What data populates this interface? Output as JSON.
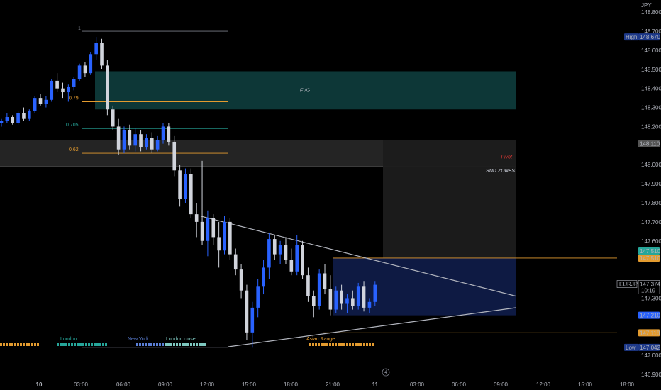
{
  "chart_data": {
    "type": "candlestick",
    "symbol": "EURJPY",
    "currency": "JPY",
    "y_axis": {
      "min": 146.9,
      "max": 148.8,
      "ticks": [
        "148.800",
        "148.700",
        "148.600",
        "148.500",
        "148.400",
        "148.300",
        "148.200",
        "148.000",
        "147.900",
        "147.800",
        "147.700",
        "147.600",
        "147.300",
        "147.000",
        "146.900"
      ]
    },
    "x_axis": {
      "ticks": [
        {
          "label": "10",
          "bold": true
        },
        {
          "label": "03:00"
        },
        {
          "label": "06:00"
        },
        {
          "label": "09:00"
        },
        {
          "label": "12:00"
        },
        {
          "label": "15:00"
        },
        {
          "label": "18:00"
        },
        {
          "label": "21:00"
        },
        {
          "label": "11",
          "bold": true
        },
        {
          "label": "03:00"
        },
        {
          "label": "06:00"
        },
        {
          "label": "09:00"
        },
        {
          "label": "12:00"
        },
        {
          "label": "15:00"
        },
        {
          "label": "18:00"
        }
      ]
    },
    "price_labels": [
      {
        "text": "High",
        "value": "148.670",
        "price": 148.67
      },
      {
        "text": "",
        "value": "148.110",
        "price": 148.11
      },
      {
        "text": "BSLQ",
        "value": "147.510",
        "price": 147.51
      },
      {
        "text": "",
        "value": "147.510",
        "price": 147.51
      },
      {
        "text": "EURJPY",
        "value": "147.374",
        "price": 147.374
      },
      {
        "text": "",
        "value": "10:19",
        "price": 147.374
      },
      {
        "text": "",
        "value": "147.210",
        "price": 147.21
      },
      {
        "text": "SSLQ",
        "value": "147.118",
        "price": 147.118
      },
      {
        "text": "Low",
        "value": "147.042",
        "price": 147.042
      }
    ],
    "fib_levels": [
      {
        "label": "1",
        "price": 148.67
      },
      {
        "label": "0.79",
        "price": 148.33
      },
      {
        "label": "0.705",
        "price": 148.19
      },
      {
        "label": "0.62",
        "price": 148.06
      }
    ],
    "zones": [
      {
        "label": "FVG",
        "top": 148.49,
        "bottom": 148.29
      },
      {
        "label": "SND ZONES",
        "top": 148.13,
        "bottom": 147.99
      },
      {
        "label": "Asian Range",
        "price": 147.118
      }
    ],
    "line_labels": [
      {
        "text": "Pivot",
        "price": 148.04
      }
    ],
    "sessions": [
      {
        "label": "London"
      },
      {
        "label": "New York"
      },
      {
        "label": "London close"
      },
      {
        "label": "Asian Range"
      }
    ],
    "candles": [
      [
        148.22,
        148.24,
        148.2,
        148.23
      ],
      [
        148.23,
        148.27,
        148.22,
        148.25
      ],
      [
        148.25,
        148.26,
        148.21,
        148.22
      ],
      [
        148.22,
        148.28,
        148.21,
        148.27
      ],
      [
        148.27,
        148.3,
        148.23,
        148.24
      ],
      [
        148.24,
        148.29,
        148.23,
        148.28
      ],
      [
        148.28,
        148.36,
        148.27,
        148.35
      ],
      [
        148.35,
        148.37,
        148.31,
        148.32
      ],
      [
        148.32,
        148.36,
        148.3,
        148.34
      ],
      [
        148.34,
        148.45,
        148.33,
        148.44
      ],
      [
        148.44,
        148.48,
        148.38,
        148.4
      ],
      [
        148.4,
        148.43,
        148.35,
        148.38
      ],
      [
        148.38,
        148.42,
        148.33,
        148.41
      ],
      [
        148.41,
        148.46,
        148.39,
        148.45
      ],
      [
        148.45,
        148.53,
        148.44,
        148.52
      ],
      [
        148.52,
        148.54,
        148.46,
        148.48
      ],
      [
        148.48,
        148.59,
        148.47,
        148.58
      ],
      [
        148.58,
        148.67,
        148.55,
        148.64
      ],
      [
        148.64,
        148.66,
        148.5,
        148.52
      ],
      [
        148.52,
        148.55,
        148.26,
        148.29
      ],
      [
        148.29,
        148.31,
        148.18,
        148.2
      ],
      [
        148.2,
        148.24,
        148.05,
        148.08
      ],
      [
        148.08,
        148.2,
        148.06,
        148.18
      ],
      [
        148.18,
        148.21,
        148.08,
        148.1
      ],
      [
        148.1,
        148.19,
        148.07,
        148.16
      ],
      [
        148.16,
        148.18,
        148.07,
        148.09
      ],
      [
        148.09,
        148.16,
        148.08,
        148.14
      ],
      [
        148.14,
        148.17,
        148.06,
        148.08
      ],
      [
        148.08,
        148.15,
        148.07,
        148.13
      ],
      [
        148.13,
        148.22,
        148.11,
        148.2
      ],
      [
        148.2,
        148.22,
        148.1,
        148.12
      ],
      [
        148.12,
        148.15,
        147.94,
        147.97
      ],
      [
        147.97,
        148.0,
        147.78,
        147.82
      ],
      [
        147.82,
        147.98,
        147.8,
        147.95
      ],
      [
        147.95,
        147.98,
        147.72,
        147.74
      ],
      [
        147.74,
        147.8,
        147.62,
        147.7
      ],
      [
        147.7,
        148.02,
        147.58,
        147.6
      ],
      [
        147.6,
        147.76,
        147.52,
        147.72
      ],
      [
        147.72,
        147.74,
        147.58,
        147.62
      ],
      [
        147.62,
        147.7,
        147.46,
        147.55
      ],
      [
        147.55,
        147.73,
        147.53,
        147.7
      ],
      [
        147.7,
        147.72,
        147.5,
        147.53
      ],
      [
        147.53,
        147.56,
        147.42,
        147.45
      ],
      [
        147.45,
        147.48,
        147.3,
        147.34
      ],
      [
        147.34,
        147.37,
        147.08,
        147.12
      ],
      [
        147.12,
        147.28,
        147.04,
        147.25
      ],
      [
        147.25,
        147.4,
        147.2,
        147.36
      ],
      [
        147.36,
        147.5,
        147.32,
        147.46
      ],
      [
        147.46,
        147.64,
        147.4,
        147.61
      ],
      [
        147.61,
        147.63,
        147.5,
        147.53
      ],
      [
        147.53,
        147.6,
        147.48,
        147.58
      ],
      [
        147.58,
        147.62,
        147.48,
        147.5
      ],
      [
        147.5,
        147.56,
        147.42,
        147.44
      ],
      [
        147.44,
        147.63,
        147.42,
        147.58
      ],
      [
        147.58,
        147.6,
        147.4,
        147.42
      ],
      [
        147.42,
        147.46,
        147.28,
        147.31
      ],
      [
        147.31,
        147.34,
        147.2,
        147.26
      ],
      [
        147.26,
        147.45,
        147.24,
        147.43
      ],
      [
        147.43,
        147.48,
        147.32,
        147.35
      ],
      [
        147.35,
        147.42,
        147.21,
        147.24
      ],
      [
        147.24,
        147.36,
        147.22,
        147.34
      ],
      [
        147.34,
        147.37,
        147.24,
        147.27
      ],
      [
        147.27,
        147.32,
        147.22,
        147.3
      ],
      [
        147.3,
        147.34,
        147.24,
        147.26
      ],
      [
        147.26,
        147.38,
        147.24,
        147.36
      ],
      [
        147.36,
        147.39,
        147.23,
        147.25
      ],
      [
        147.25,
        147.3,
        147.22,
        147.28
      ],
      [
        147.28,
        147.39,
        147.26,
        147.37
      ]
    ]
  }
}
